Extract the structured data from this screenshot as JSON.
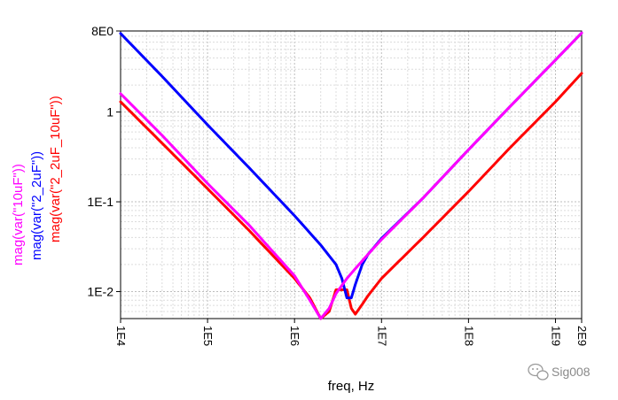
{
  "chart_data": {
    "type": "line",
    "title": "",
    "xlabel": "freq, Hz",
    "x_scale": "log",
    "y_scale": "log",
    "xlim": [
      10000,
      2000000000
    ],
    "ylim": [
      0.005,
      8
    ],
    "x_ticks": [
      {
        "value": 10000,
        "label": "1E4"
      },
      {
        "value": 100000,
        "label": "1E5"
      },
      {
        "value": 1000000,
        "label": "1E6"
      },
      {
        "value": 10000000,
        "label": "1E7"
      },
      {
        "value": 100000000,
        "label": "1E8"
      },
      {
        "value": 1000000000,
        "label": "1E9"
      },
      {
        "value": 2000000000,
        "label": "2E9"
      }
    ],
    "y_ticks": [
      {
        "value": 8,
        "label": "8E0"
      },
      {
        "value": 1,
        "label": "1"
      },
      {
        "value": 0.1,
        "label": "1E-1"
      },
      {
        "value": 0.01,
        "label": "1E-2"
      }
    ],
    "grid": true,
    "series": [
      {
        "name": "mag(var(\"10uF\"))",
        "color": "#ff00ff",
        "x": [
          10000,
          30000,
          100000,
          300000,
          1000000,
          1500000,
          2000000,
          2500000,
          3000000,
          4000000,
          5000000,
          7000000,
          10000000,
          30000000,
          100000000,
          300000000,
          1000000000,
          2000000000
        ],
        "y": [
          1.6,
          0.55,
          0.16,
          0.055,
          0.015,
          0.008,
          0.005,
          0.0065,
          0.0095,
          0.014,
          0.018,
          0.026,
          0.038,
          0.11,
          0.38,
          1.15,
          3.8,
          7.6
        ]
      },
      {
        "name": "mag(var(\"2_2uF\"))",
        "color": "#0000ff",
        "x": [
          10000,
          30000,
          100000,
          300000,
          1000000,
          2000000,
          3000000,
          3500000,
          4000000,
          4500000,
          5000000,
          6000000,
          7000000,
          10000000,
          30000000,
          100000000,
          300000000,
          1000000000,
          2000000000
        ],
        "y": [
          7.5,
          2.5,
          0.72,
          0.24,
          0.07,
          0.033,
          0.02,
          0.014,
          0.0085,
          0.0085,
          0.012,
          0.02,
          0.026,
          0.039,
          0.11,
          0.38,
          1.15,
          3.8,
          7.6
        ]
      },
      {
        "name": "mag(var(\"2_2uF_10uF\"))",
        "color": "#ff0000",
        "x": [
          10000,
          30000,
          100000,
          300000,
          1000000,
          1500000,
          2000000,
          2500000,
          3000000,
          4000000,
          4500000,
          5000000,
          6000000,
          7000000,
          10000000,
          30000000,
          100000000,
          300000000,
          1000000000,
          2000000000
        ],
        "y": [
          1.3,
          0.45,
          0.14,
          0.048,
          0.014,
          0.0085,
          0.005,
          0.006,
          0.0105,
          0.0105,
          0.0065,
          0.0056,
          0.0072,
          0.009,
          0.014,
          0.04,
          0.13,
          0.4,
          1.3,
          2.7
        ]
      }
    ]
  },
  "watermark": {
    "icon": "wechat-icon",
    "text": "Sig008"
  }
}
